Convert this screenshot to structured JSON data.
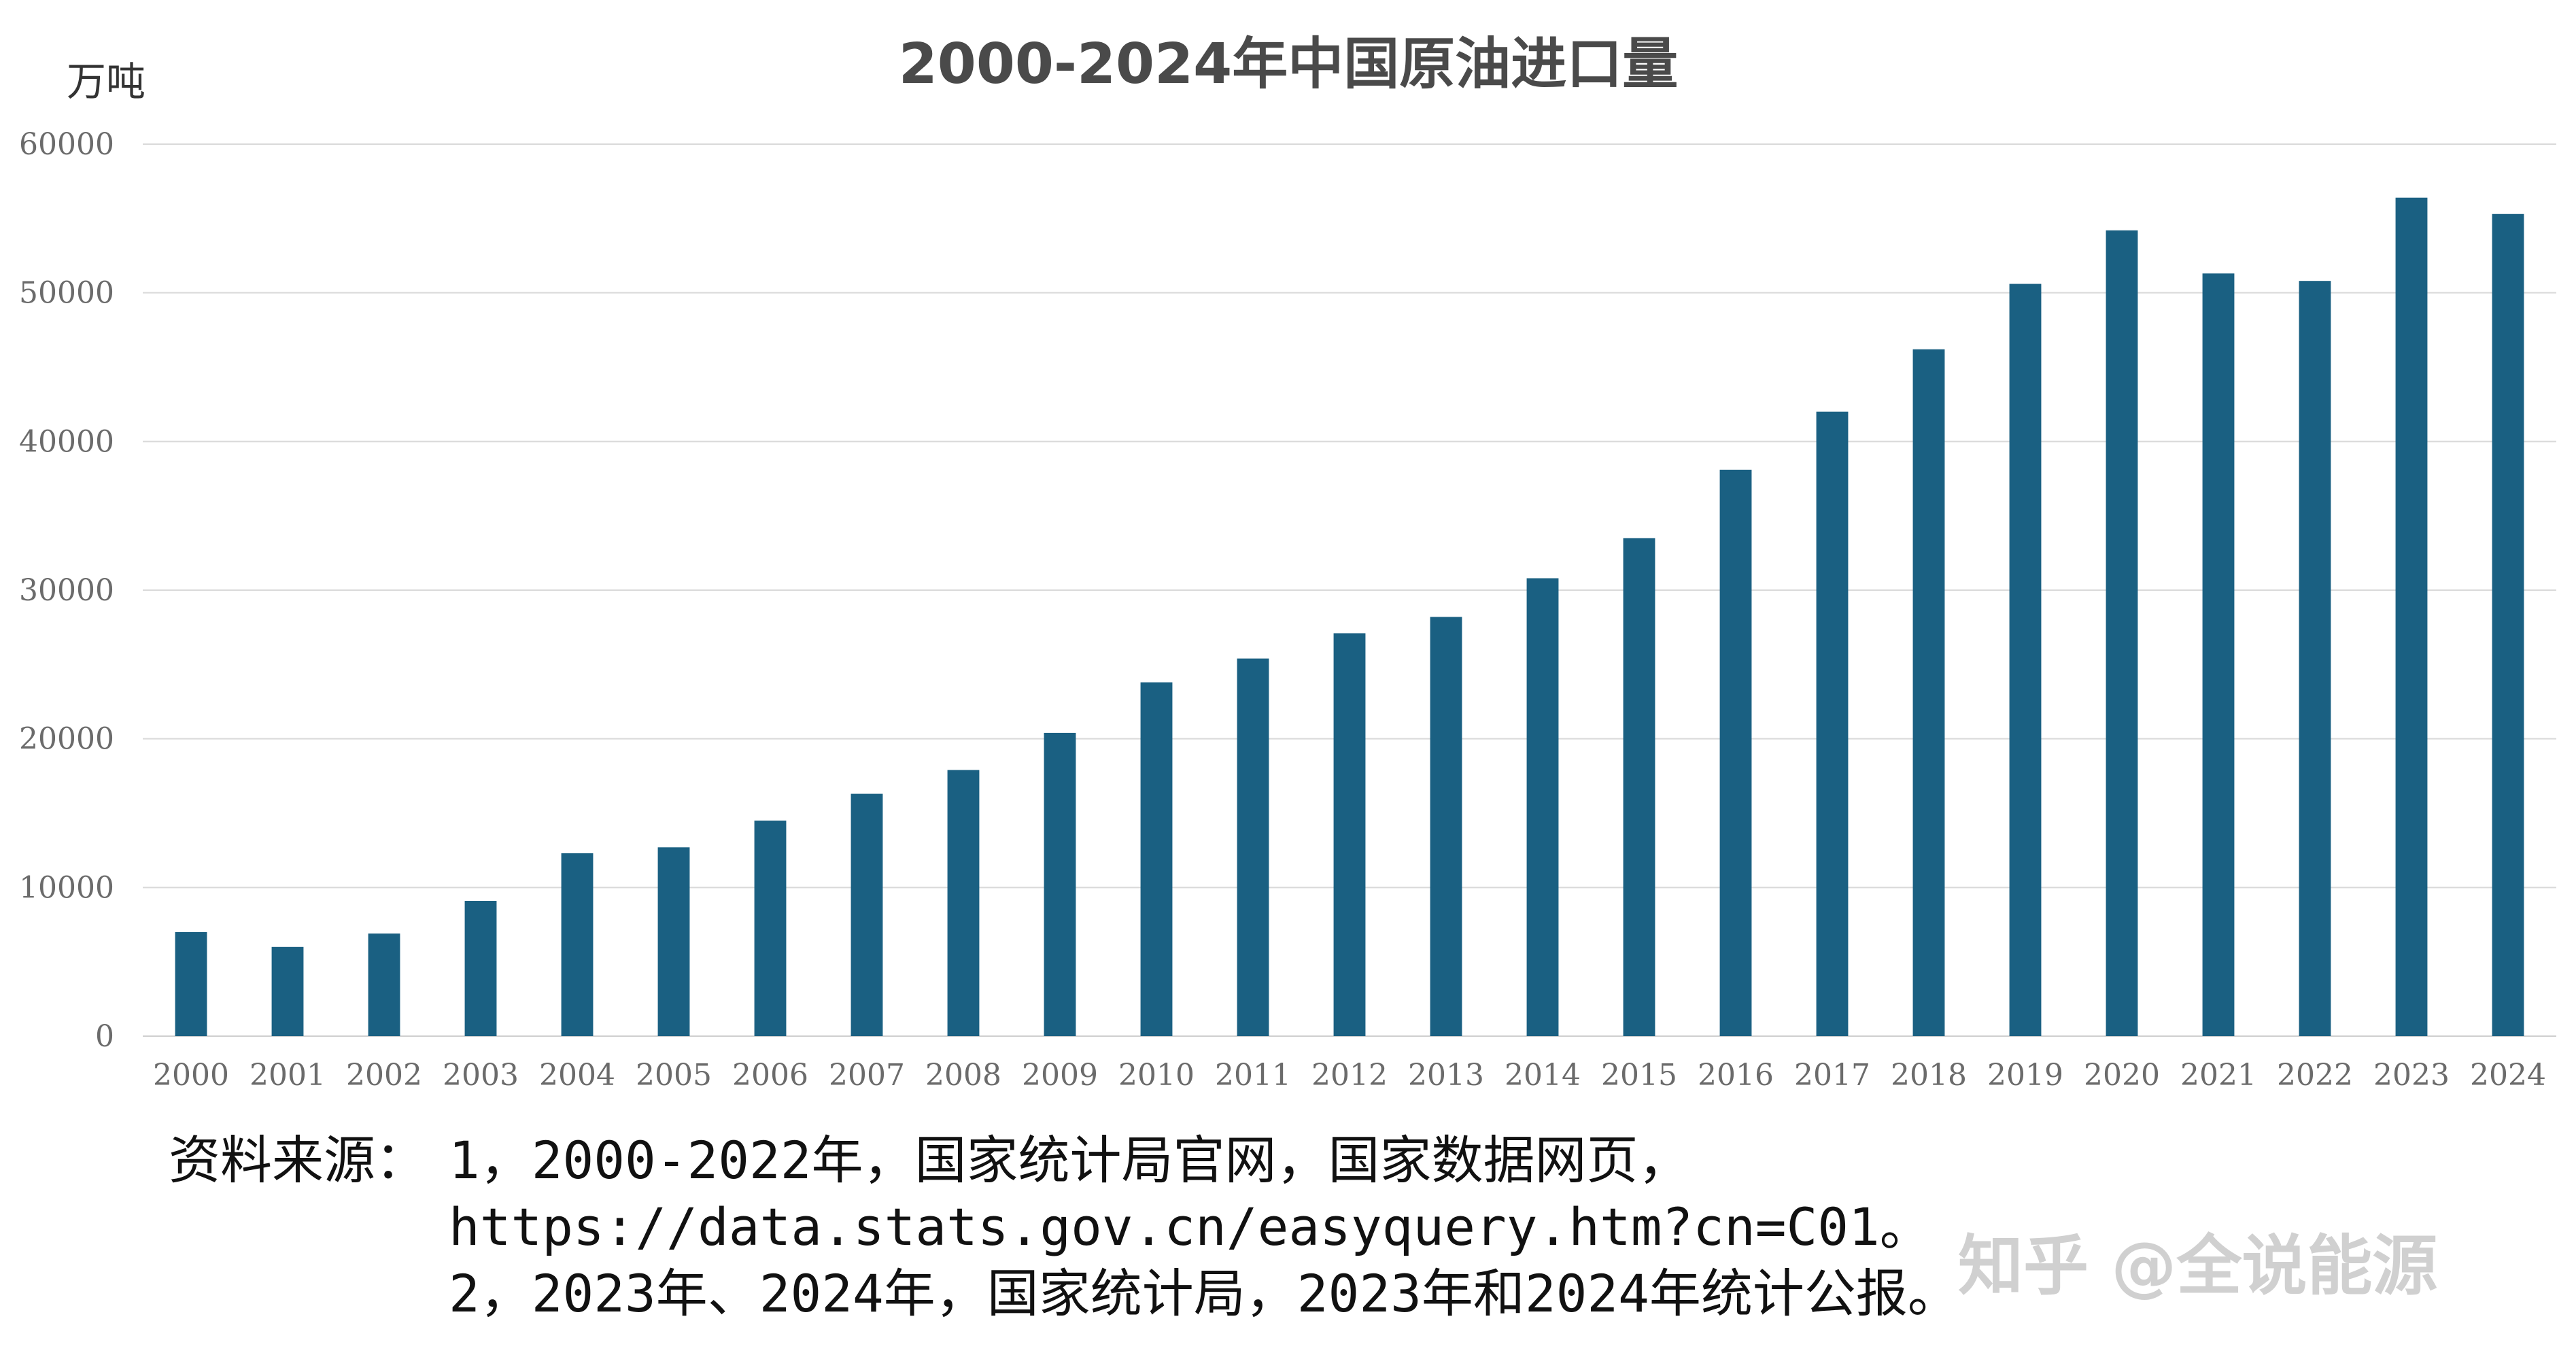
{
  "chart_data": {
    "type": "bar",
    "title": "2000-2024年中国原油进口量",
    "ylabel": "万吨",
    "xlabel": "",
    "ylim": [
      0,
      60000
    ],
    "yticks": [
      "0",
      "10000",
      "20000",
      "30000",
      "40000",
      "50000",
      "60000"
    ],
    "grid": true,
    "categories": [
      "2000",
      "2001",
      "2002",
      "2003",
      "2004",
      "2005",
      "2006",
      "2007",
      "2008",
      "2009",
      "2010",
      "2011",
      "2012",
      "2013",
      "2014",
      "2015",
      "2016",
      "2017",
      "2018",
      "2019",
      "2020",
      "2021",
      "2022",
      "2023",
      "2024"
    ],
    "values": [
      7000,
      6000,
      6900,
      9100,
      12300,
      12700,
      14500,
      16300,
      17900,
      20400,
      23800,
      25400,
      27100,
      28200,
      30800,
      33500,
      38100,
      42000,
      46200,
      50600,
      54200,
      51300,
      50800,
      56400,
      55300
    ],
    "bar_color": "#1a6082"
  },
  "source": {
    "prefix": "资料来源：",
    "line1": "1，2000-2022年，国家统计局官网，国家数据网页，",
    "line2": "https://data.stats.gov.cn/easyquery.htm?cn=C01。",
    "line3": "2，2023年、2024年，国家统计局，2023年和2024年统计公报。"
  },
  "watermark": "知乎 @全说能源"
}
